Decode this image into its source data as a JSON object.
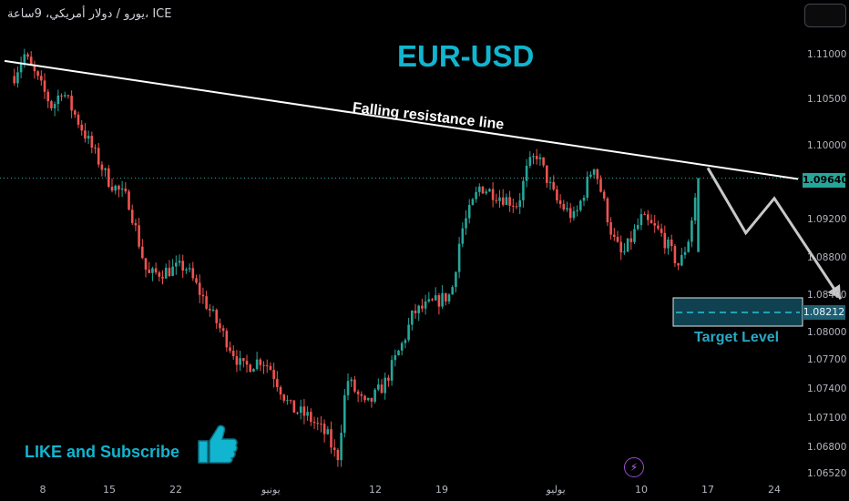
{
  "header": {
    "symbol_line": "يورو / دولار أمريكي، 9ساعة، ICE"
  },
  "annotations": {
    "title": "EUR-USD",
    "resistance_label": "Falling resistance line",
    "target_label": "Target Level",
    "cta": "LIKE and Subscribe",
    "bolt_icon": "⚡"
  },
  "price_tags": {
    "current": "1.09640",
    "target": "1.08212"
  },
  "colors": {
    "up": "#26a69a",
    "down": "#ef5350",
    "accent": "#11b5cf",
    "target_box": "#1f5f73"
  },
  "chart_data": {
    "type": "candlestick",
    "title": "EUR-USD",
    "ylim": [
      1.064,
      1.113
    ],
    "yticks": [
      1.11,
      1.105,
      1.1,
      1.092,
      1.088,
      1.084,
      1.08,
      1.077,
      1.074,
      1.071,
      1.068,
      1.0652
    ],
    "ytick_labels": [
      "1.11000",
      "1.10500",
      "1.10000",
      "1.09200",
      "1.08800",
      "1.08400",
      "1.08000",
      "1.07700",
      "1.07400",
      "1.07100",
      "1.06800",
      "1.06520"
    ],
    "xtick_labels": [
      "8",
      "15",
      "22",
      "يونيو",
      "12",
      "19",
      "يوليو",
      "10",
      "17",
      "24"
    ],
    "dates": [
      "May-08",
      "May-15",
      "May-22",
      "Jun-01",
      "Jun-12",
      "Jun-19",
      "Jul-01",
      "Jul-10",
      "Jul-17",
      "Jul-24"
    ],
    "path_waypoints": [
      {
        "date": "May-05",
        "price": 1.1075
      },
      {
        "date": "May-06",
        "price": 1.11
      },
      {
        "date": "May-09",
        "price": 1.104
      },
      {
        "date": "May-10",
        "price": 1.106
      },
      {
        "date": "May-15",
        "price": 1.096
      },
      {
        "date": "May-17",
        "price": 1.094
      },
      {
        "date": "May-19",
        "price": 1.086
      },
      {
        "date": "May-23",
        "price": 1.087
      },
      {
        "date": "May-26",
        "price": 1.0815
      },
      {
        "date": "May-29",
        "price": 1.076
      },
      {
        "date": "May-31",
        "price": 1.077
      },
      {
        "date": "Jun-01",
        "price": 1.076
      },
      {
        "date": "Jun-03",
        "price": 1.072
      },
      {
        "date": "Jun-05",
        "price": 1.071
      },
      {
        "date": "Jun-07",
        "price": 1.069
      },
      {
        "date": "Jun-08",
        "price": 1.0665
      },
      {
        "date": "Jun-09",
        "price": 1.075
      },
      {
        "date": "Jun-11",
        "price": 1.072
      },
      {
        "date": "Jun-13",
        "price": 1.0745
      },
      {
        "date": "Jun-15",
        "price": 1.079
      },
      {
        "date": "Jun-16",
        "price": 1.082
      },
      {
        "date": "Jun-18",
        "price": 1.083
      },
      {
        "date": "Jun-20",
        "price": 1.084
      },
      {
        "date": "Jun-21",
        "price": 1.0905
      },
      {
        "date": "Jun-23",
        "price": 1.0955
      },
      {
        "date": "Jun-25",
        "price": 1.0945
      },
      {
        "date": "Jun-27",
        "price": 1.0935
      },
      {
        "date": "Jun-28",
        "price": 1.0975
      },
      {
        "date": "Jun-29",
        "price": 1.099
      },
      {
        "date": "Jul-01",
        "price": 1.094
      },
      {
        "date": "Jul-03",
        "price": 1.092
      },
      {
        "date": "Jul-05",
        "price": 1.098
      },
      {
        "date": "Jul-07",
        "price": 1.09
      },
      {
        "date": "Jul-08",
        "price": 1.088
      },
      {
        "date": "Jul-10",
        "price": 1.092
      },
      {
        "date": "Jul-12",
        "price": 1.0905
      },
      {
        "date": "Jul-14",
        "price": 1.087
      },
      {
        "date": "Jul-15",
        "price": 1.09
      },
      {
        "date": "Jul-16",
        "price": 1.0964
      }
    ],
    "resistance_line": {
      "label": "Falling resistance line",
      "start": {
        "date": "May-05",
        "price": 1.1092
      },
      "end": {
        "date": "Aug-01",
        "price": 1.0963
      }
    },
    "projection_path": [
      {
        "date": "Jul-17",
        "price": 1.0975
      },
      {
        "date": "Jul-21",
        "price": 1.0905
      },
      {
        "date": "Jul-24",
        "price": 1.0942
      },
      {
        "date": "Jul-31",
        "price": 1.0835
      }
    ],
    "current_price": 1.0964,
    "target_level": {
      "label": "Target Level",
      "price": 1.08212
    }
  }
}
